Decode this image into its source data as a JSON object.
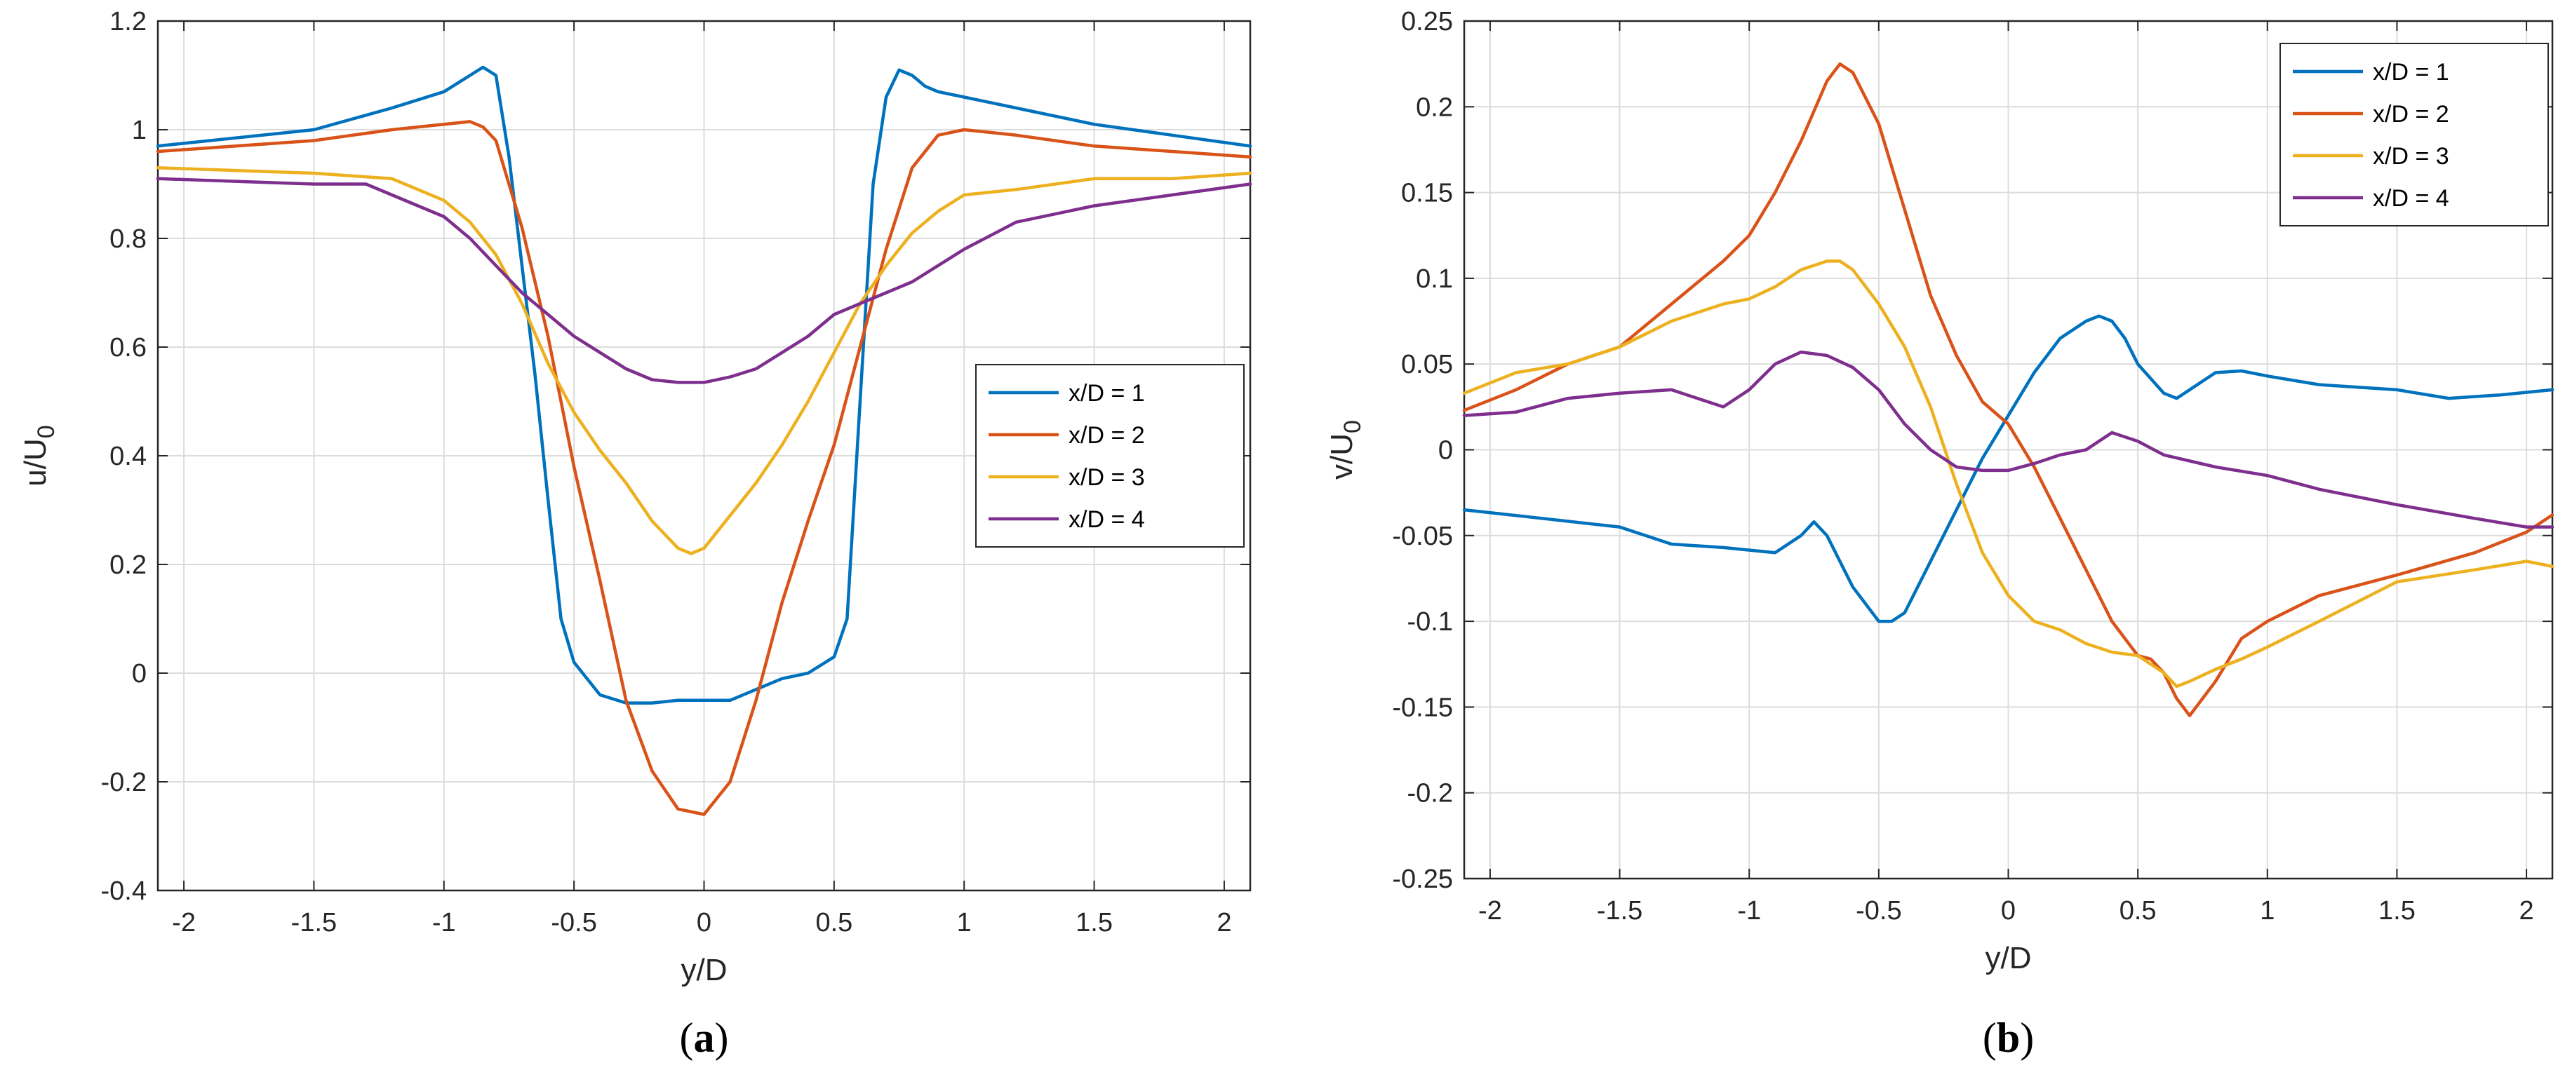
{
  "chart_data": [
    {
      "type": "line",
      "panel_label": "a",
      "xlabel": "y/D",
      "ylabel": "u/U",
      "ylabel_sub": "0",
      "xlim": [
        -2.1,
        2.1
      ],
      "ylim": [
        -0.4,
        1.2
      ],
      "xticks": [
        -2,
        -1.5,
        -1,
        -0.5,
        0,
        0.5,
        1,
        1.5,
        2
      ],
      "xtick_labels": [
        "-2",
        "-1.5",
        "-1",
        "-0.5",
        "0",
        "0.5",
        "1",
        "1.5",
        "2"
      ],
      "yticks": [
        -0.4,
        -0.2,
        0,
        0.2,
        0.4,
        0.6,
        0.8,
        1,
        1.2
      ],
      "ytick_labels": [
        "-0.4",
        "-0.2",
        "0",
        "0.2",
        "0.4",
        "0.6",
        "0.8",
        "1",
        "1.2"
      ],
      "grid": true,
      "legend_position": "middle-right",
      "series": [
        {
          "name": "x/D = 1",
          "color": "#0072BD",
          "x": [
            -2.1,
            -1.5,
            -1.2,
            -1.0,
            -0.9,
            -0.85,
            -0.8,
            -0.75,
            -0.7,
            -0.65,
            -0.6,
            -0.55,
            -0.5,
            -0.4,
            -0.3,
            -0.2,
            -0.1,
            0,
            0.1,
            0.2,
            0.3,
            0.4,
            0.5,
            0.55,
            0.6,
            0.65,
            0.7,
            0.75,
            0.8,
            0.85,
            0.9,
            1.0,
            1.2,
            1.5,
            1.8,
            2.1
          ],
          "y": [
            0.97,
            1.0,
            1.04,
            1.07,
            1.1,
            1.115,
            1.1,
            0.95,
            0.75,
            0.55,
            0.32,
            0.1,
            0.02,
            -0.04,
            -0.055,
            -0.055,
            -0.05,
            -0.05,
            -0.05,
            -0.03,
            -0.01,
            0.0,
            0.03,
            0.1,
            0.5,
            0.9,
            1.06,
            1.11,
            1.1,
            1.08,
            1.07,
            1.06,
            1.04,
            1.01,
            0.99,
            0.97
          ]
        },
        {
          "name": "x/D = 2",
          "color": "#D95319",
          "x": [
            -2.1,
            -1.5,
            -1.2,
            -1.0,
            -0.9,
            -0.85,
            -0.8,
            -0.7,
            -0.6,
            -0.5,
            -0.4,
            -0.3,
            -0.2,
            -0.1,
            0,
            0.1,
            0.2,
            0.3,
            0.4,
            0.5,
            0.6,
            0.7,
            0.8,
            0.9,
            1.0,
            1.2,
            1.5,
            1.8,
            2.1
          ],
          "y": [
            0.96,
            0.98,
            1.0,
            1.01,
            1.015,
            1.005,
            0.98,
            0.82,
            0.62,
            0.38,
            0.17,
            -0.05,
            -0.18,
            -0.25,
            -0.26,
            -0.2,
            -0.05,
            0.13,
            0.28,
            0.42,
            0.6,
            0.78,
            0.93,
            0.99,
            1.0,
            0.99,
            0.97,
            0.96,
            0.95
          ]
        },
        {
          "name": "x/D = 3",
          "color": "#EDB120",
          "x": [
            -2.1,
            -1.5,
            -1.2,
            -1.0,
            -0.9,
            -0.8,
            -0.7,
            -0.6,
            -0.5,
            -0.4,
            -0.3,
            -0.2,
            -0.1,
            -0.05,
            0,
            0.1,
            0.2,
            0.3,
            0.4,
            0.5,
            0.6,
            0.7,
            0.8,
            0.9,
            1.0,
            1.2,
            1.5,
            1.8,
            2.1
          ],
          "y": [
            0.93,
            0.92,
            0.91,
            0.87,
            0.83,
            0.77,
            0.68,
            0.57,
            0.48,
            0.41,
            0.35,
            0.28,
            0.23,
            0.22,
            0.23,
            0.29,
            0.35,
            0.42,
            0.5,
            0.59,
            0.68,
            0.75,
            0.81,
            0.85,
            0.88,
            0.89,
            0.91,
            0.91,
            0.92
          ]
        },
        {
          "name": "x/D = 4",
          "color": "#7E2F8E",
          "x": [
            -2.1,
            -1.5,
            -1.3,
            -1.1,
            -1.0,
            -0.9,
            -0.8,
            -0.7,
            -0.6,
            -0.5,
            -0.4,
            -0.3,
            -0.2,
            -0.1,
            0,
            0.1,
            0.2,
            0.3,
            0.4,
            0.5,
            0.6,
            0.7,
            0.8,
            0.9,
            1.0,
            1.2,
            1.5,
            1.8,
            2.1
          ],
          "y": [
            0.91,
            0.9,
            0.9,
            0.86,
            0.84,
            0.8,
            0.75,
            0.7,
            0.66,
            0.62,
            0.59,
            0.56,
            0.54,
            0.535,
            0.535,
            0.545,
            0.56,
            0.59,
            0.62,
            0.66,
            0.68,
            0.7,
            0.72,
            0.75,
            0.78,
            0.83,
            0.86,
            0.88,
            0.9
          ]
        }
      ]
    },
    {
      "type": "line",
      "panel_label": "b",
      "xlabel": "y/D",
      "ylabel": "v/U",
      "ylabel_sub": "0",
      "xlim": [
        -2.1,
        2.1
      ],
      "ylim": [
        -0.25,
        0.25
      ],
      "xticks": [
        -2,
        -1.5,
        -1,
        -0.5,
        0,
        0.5,
        1,
        1.5,
        2
      ],
      "xtick_labels": [
        "-2",
        "-1.5",
        "-1",
        "-0.5",
        "0",
        "0.5",
        "1",
        "1.5",
        "2"
      ],
      "yticks": [
        -0.25,
        -0.2,
        -0.15,
        -0.1,
        -0.05,
        0,
        0.05,
        0.1,
        0.15,
        0.2,
        0.25
      ],
      "ytick_labels": [
        "-0.25",
        "-0.2",
        "-0.15",
        "-0.1",
        "-0.05",
        "0",
        "0.05",
        "0.1",
        "0.15",
        "0.2",
        "0.25"
      ],
      "grid": true,
      "legend_position": "top-right",
      "series": [
        {
          "name": "x/D = 1",
          "color": "#0072BD",
          "x": [
            -2.1,
            -1.8,
            -1.5,
            -1.3,
            -1.1,
            -0.9,
            -0.8,
            -0.75,
            -0.7,
            -0.6,
            -0.5,
            -0.45,
            -0.4,
            -0.3,
            -0.2,
            -0.1,
            0,
            0.1,
            0.2,
            0.3,
            0.35,
            0.4,
            0.45,
            0.5,
            0.6,
            0.65,
            0.7,
            0.8,
            0.9,
            1.0,
            1.2,
            1.5,
            1.7,
            1.9,
            2.1
          ],
          "y": [
            -0.035,
            -0.04,
            -0.045,
            -0.055,
            -0.057,
            -0.06,
            -0.05,
            -0.042,
            -0.05,
            -0.08,
            -0.1,
            -0.1,
            -0.095,
            -0.065,
            -0.035,
            -0.005,
            0.02,
            0.045,
            0.065,
            0.075,
            0.078,
            0.075,
            0.065,
            0.05,
            0.033,
            0.03,
            0.035,
            0.045,
            0.046,
            0.043,
            0.038,
            0.035,
            0.03,
            0.032,
            0.035
          ]
        },
        {
          "name": "x/D = 2",
          "color": "#D95319",
          "x": [
            -2.1,
            -1.9,
            -1.7,
            -1.5,
            -1.3,
            -1.1,
            -1.0,
            -0.9,
            -0.8,
            -0.7,
            -0.65,
            -0.6,
            -0.5,
            -0.4,
            -0.3,
            -0.2,
            -0.1,
            0,
            0.1,
            0.2,
            0.3,
            0.4,
            0.5,
            0.55,
            0.6,
            0.65,
            0.7,
            0.8,
            0.9,
            1.0,
            1.2,
            1.5,
            1.8,
            2.0,
            2.1
          ],
          "y": [
            0.023,
            0.035,
            0.05,
            0.06,
            0.085,
            0.11,
            0.125,
            0.15,
            0.18,
            0.215,
            0.225,
            0.22,
            0.19,
            0.14,
            0.09,
            0.055,
            0.028,
            0.015,
            -0.01,
            -0.04,
            -0.07,
            -0.1,
            -0.12,
            -0.122,
            -0.13,
            -0.145,
            -0.155,
            -0.135,
            -0.11,
            -0.1,
            -0.085,
            -0.073,
            -0.06,
            -0.048,
            -0.038
          ]
        },
        {
          "name": "x/D = 3",
          "color": "#EDB120",
          "x": [
            -2.1,
            -1.9,
            -1.7,
            -1.5,
            -1.3,
            -1.1,
            -1.0,
            -0.9,
            -0.8,
            -0.7,
            -0.65,
            -0.6,
            -0.5,
            -0.4,
            -0.3,
            -0.2,
            -0.1,
            0,
            0.1,
            0.2,
            0.3,
            0.4,
            0.5,
            0.6,
            0.65,
            0.7,
            0.8,
            0.9,
            1.0,
            1.2,
            1.5,
            1.8,
            2.0,
            2.1
          ],
          "y": [
            0.033,
            0.045,
            0.05,
            0.06,
            0.075,
            0.085,
            0.088,
            0.095,
            0.105,
            0.11,
            0.11,
            0.105,
            0.085,
            0.06,
            0.025,
            -0.02,
            -0.06,
            -0.085,
            -0.1,
            -0.105,
            -0.113,
            -0.118,
            -0.12,
            -0.13,
            -0.138,
            -0.135,
            -0.128,
            -0.122,
            -0.115,
            -0.1,
            -0.077,
            -0.07,
            -0.065,
            -0.068
          ]
        },
        {
          "name": "x/D = 4",
          "color": "#7E2F8E",
          "x": [
            -2.1,
            -1.9,
            -1.7,
            -1.5,
            -1.3,
            -1.2,
            -1.1,
            -1.0,
            -0.9,
            -0.8,
            -0.7,
            -0.6,
            -0.5,
            -0.4,
            -0.3,
            -0.2,
            -0.1,
            0,
            0.1,
            0.2,
            0.3,
            0.4,
            0.5,
            0.6,
            0.8,
            1.0,
            1.2,
            1.5,
            1.8,
            2.0,
            2.1
          ],
          "y": [
            0.02,
            0.022,
            0.03,
            0.033,
            0.035,
            0.03,
            0.025,
            0.035,
            0.05,
            0.057,
            0.055,
            0.048,
            0.035,
            0.015,
            0.0,
            -0.01,
            -0.012,
            -0.012,
            -0.008,
            -0.003,
            0.0,
            0.01,
            0.005,
            -0.003,
            -0.01,
            -0.015,
            -0.023,
            -0.032,
            -0.04,
            -0.045,
            -0.045
          ]
        }
      ]
    }
  ]
}
